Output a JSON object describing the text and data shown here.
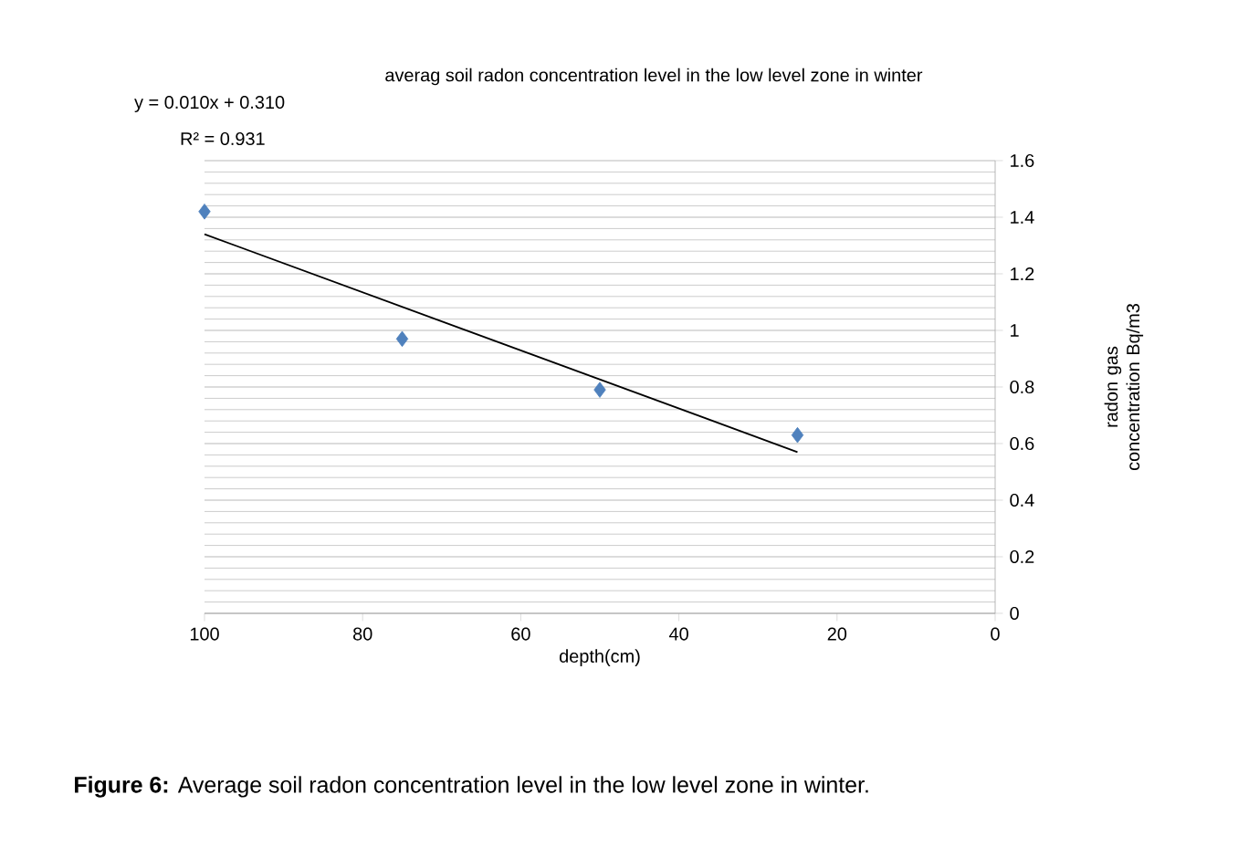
{
  "chart_data": {
    "type": "scatter",
    "title": "averag soil radon concentration level in the low level zone in winter",
    "xlabel": "depth(cm)",
    "ylabel": "radon gas concentration Bq/m3",
    "x": [
      100,
      75,
      50,
      25
    ],
    "series": [
      {
        "type": "scatter",
        "color": "#4f81bd",
        "marker": "diamond",
        "values": [
          1.42,
          0.97,
          0.79,
          0.63
        ]
      },
      {
        "type": "line",
        "color": "#000000",
        "marker": "none",
        "line_style": "solid",
        "x": [
          100,
          25
        ],
        "values": [
          1.34,
          0.57
        ]
      }
    ],
    "xlim": [
      100,
      0
    ],
    "xticks": [
      100,
      80,
      60,
      40,
      20,
      0
    ],
    "ylim": [
      0,
      1.6
    ],
    "yticks": [
      0,
      0.2,
      0.4,
      0.6,
      0.8,
      1,
      1.2,
      1.4,
      1.6
    ],
    "grid": "y",
    "annotations": [
      "y = 0.010x + 0.310",
      "R² = 0.931",
      "**Figure 6:** Average soil radon concentration level in the low level zone in winter."
    ]
  }
}
